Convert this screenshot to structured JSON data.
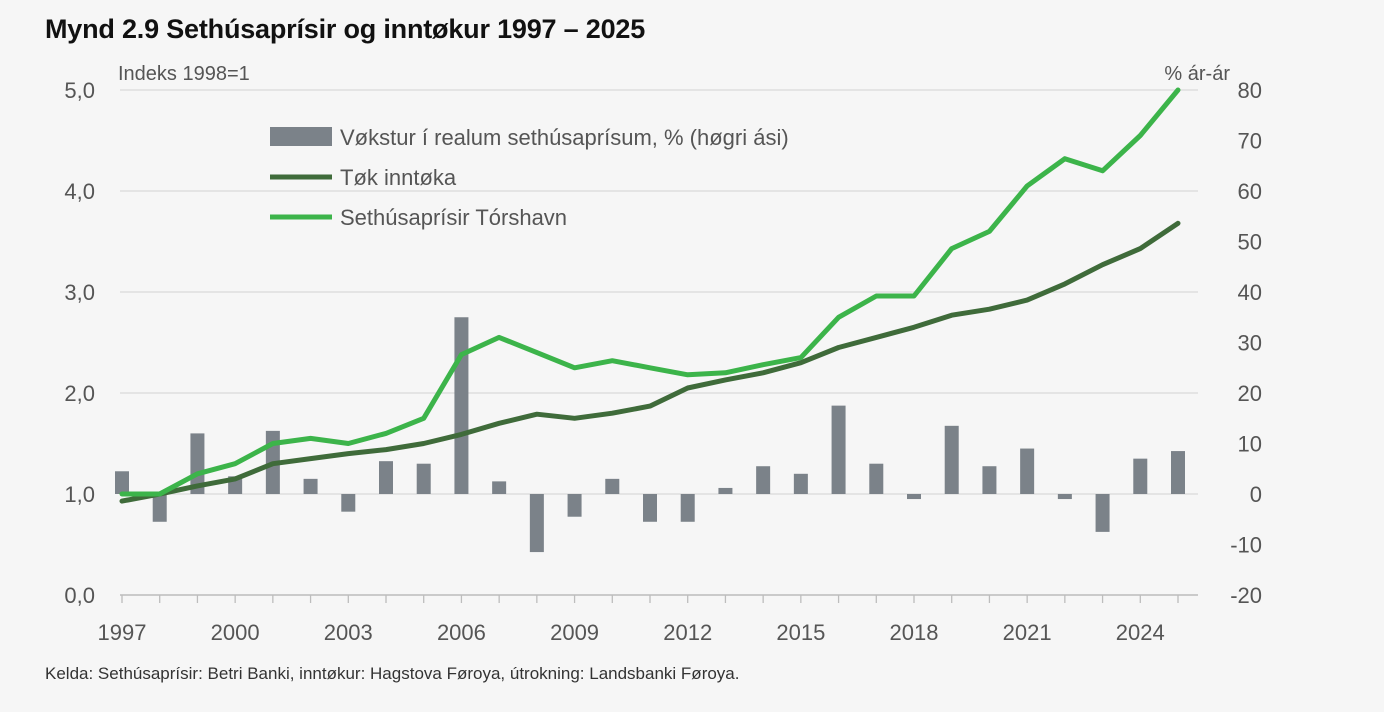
{
  "title": "Mynd 2.9 Sethúsaprísir og inntøkur 1997 – 2025",
  "source": "Kelda: Sethúsaprísir: Betri Banki, inntøkur: Hagstova Føroya, útrokning: Landsbanki Føroya.",
  "chart_data": {
    "type": "bar-line-combo",
    "left_axis": {
      "label": "Indeks 1998=1",
      "ylim": [
        0,
        5
      ],
      "ticks": [
        0,
        1,
        2,
        3,
        4,
        5
      ],
      "tick_labels": [
        "0,0",
        "1,0",
        "2,0",
        "3,0",
        "4,0",
        "5,0"
      ]
    },
    "right_axis": {
      "label": "% ár-ár",
      "ylim": [
        -20,
        80
      ],
      "ticks": [
        -20,
        -10,
        0,
        10,
        20,
        30,
        40,
        50,
        60,
        70,
        80
      ],
      "tick_labels": [
        "-20",
        "-10",
        "0",
        "10",
        "20",
        "30",
        "40",
        "50",
        "60",
        "70",
        "80"
      ]
    },
    "x": [
      1997,
      1998,
      1999,
      2000,
      2001,
      2002,
      2003,
      2004,
      2005,
      2006,
      2007,
      2008,
      2009,
      2010,
      2011,
      2012,
      2013,
      2014,
      2015,
      2016,
      2017,
      2018,
      2019,
      2020,
      2021,
      2022,
      2023,
      2024,
      2025
    ],
    "x_tick_labels": [
      "1997",
      "2000",
      "2003",
      "2006",
      "2009",
      "2012",
      "2015",
      "2018",
      "2021",
      "2024"
    ],
    "gridlines": true,
    "legend_position": "top-center",
    "series": [
      {
        "name": "Vøkstur í realum sethúsaprísum, % (høgri ási)",
        "type": "bar",
        "axis": "right",
        "color": "#7b8289",
        "values": [
          4.5,
          -5.5,
          12,
          3.5,
          12.5,
          3,
          -3.5,
          6.5,
          6,
          35,
          2.5,
          -11.5,
          -4.5,
          3,
          -5.5,
          -5.5,
          1.2,
          5.5,
          4,
          17.5,
          6,
          -1,
          13.5,
          5.5,
          9,
          -1,
          -7.5,
          7,
          8.5
        ]
      },
      {
        "name": "Tøk inntøka",
        "type": "line",
        "axis": "left",
        "color": "#3f6b3a",
        "values": [
          0.93,
          1.0,
          1.08,
          1.15,
          1.3,
          1.35,
          1.4,
          1.44,
          1.5,
          1.59,
          1.7,
          1.79,
          1.75,
          1.8,
          1.87,
          2.05,
          2.13,
          2.2,
          2.3,
          2.45,
          2.55,
          2.65,
          2.77,
          2.83,
          2.92,
          3.08,
          3.27,
          3.43,
          3.68
        ]
      },
      {
        "name": "Sethúsaprísir Tórshavn",
        "type": "line",
        "axis": "left",
        "color": "#3cb44a",
        "values": [
          1.0,
          1.0,
          1.2,
          1.3,
          1.5,
          1.55,
          1.5,
          1.6,
          1.75,
          2.38,
          2.55,
          2.4,
          2.25,
          2.32,
          2.25,
          2.18,
          2.2,
          2.28,
          2.35,
          2.75,
          2.96,
          2.96,
          3.43,
          3.6,
          4.05,
          4.32,
          4.2,
          4.55,
          5.0
        ]
      }
    ]
  }
}
